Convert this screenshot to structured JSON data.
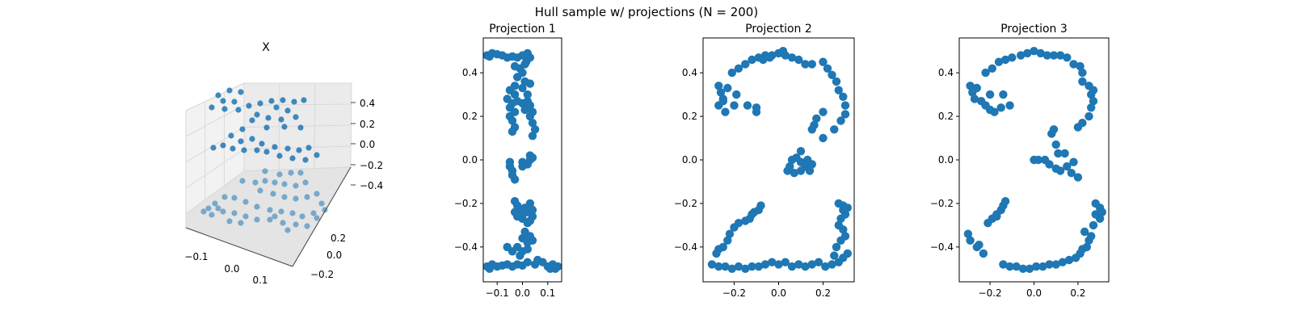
{
  "figure": {
    "suptitle": "Hull sample w/ projections (N = 200)"
  },
  "colors": {
    "marker": "#1f77b4",
    "pane": "#f2f2f2",
    "grid": "#d9d9d9"
  },
  "chart_data": [
    {
      "type": "scatter",
      "subtype": "3d",
      "title": "X",
      "x_ticks": [
        "−0.1",
        "0.0",
        "0.1"
      ],
      "y_ticks": [
        "−0.2",
        "0.0",
        "0.2"
      ],
      "z_ticks": [
        "0.4",
        "0.2",
        "0.0",
        "−0.2",
        "−0.4"
      ],
      "xlim": [
        -0.15,
        0.15
      ],
      "ylim": [
        -0.3,
        0.3
      ],
      "zlim": [
        -0.5,
        0.5
      ],
      "description_points": "digits 1, 2 and 3 stacked as hull sample",
      "grid": true
    },
    {
      "type": "scatter",
      "title": "Projection 1",
      "xlim": [
        -0.155,
        0.155
      ],
      "ylim": [
        -0.56,
        0.56
      ],
      "x_ticks": [
        "−0.1",
        "0.0",
        "0.1"
      ],
      "x_tick_values": [
        -0.1,
        0.0,
        0.1
      ],
      "y_ticks": [
        "0.4",
        "0.2",
        "0.0",
        "−0.2",
        "−0.4"
      ],
      "y_tick_values": [
        0.4,
        0.2,
        0.0,
        -0.2,
        -0.4
      ],
      "grid": false,
      "points": [
        [
          -0.14,
          0.48
        ],
        [
          -0.12,
          0.49
        ],
        [
          -0.1,
          0.485
        ],
        [
          -0.08,
          0.48
        ],
        [
          -0.06,
          0.47
        ],
        [
          -0.04,
          0.475
        ],
        [
          -0.02,
          0.47
        ],
        [
          0.0,
          0.48
        ],
        [
          0.02,
          0.49
        ],
        [
          0.03,
          0.47
        ],
        [
          0.015,
          0.45
        ],
        [
          -0.13,
          0.475
        ],
        [
          -0.03,
          0.43
        ],
        [
          -0.01,
          0.42
        ],
        [
          0.01,
          0.44
        ],
        [
          0.0,
          0.4
        ],
        [
          -0.02,
          0.38
        ],
        [
          0.01,
          0.36
        ],
        [
          0.03,
          0.35
        ],
        [
          -0.03,
          0.34
        ],
        [
          -0.05,
          0.32
        ],
        [
          -0.03,
          0.3
        ],
        [
          0.0,
          0.33
        ],
        [
          0.02,
          0.3
        ],
        [
          -0.06,
          0.28
        ],
        [
          -0.04,
          0.26
        ],
        [
          -0.05,
          0.24
        ],
        [
          -0.03,
          0.22
        ],
        [
          -0.05,
          0.2
        ],
        [
          -0.04,
          0.18
        ],
        [
          -0.03,
          0.15
        ],
        [
          -0.04,
          0.13
        ],
        [
          0.02,
          0.27
        ],
        [
          0.03,
          0.25
        ],
        [
          0.04,
          0.22
        ],
        [
          0.03,
          0.2
        ],
        [
          0.04,
          0.17
        ],
        [
          0.05,
          0.14
        ],
        [
          0.04,
          0.11
        ],
        [
          0.0,
          0.26
        ],
        [
          0.01,
          0.23
        ],
        [
          -0.02,
          0.27
        ],
        [
          -0.05,
          -0.03
        ],
        [
          -0.04,
          -0.05
        ],
        [
          -0.04,
          -0.07
        ],
        [
          -0.03,
          -0.09
        ],
        [
          -0.05,
          -0.01
        ],
        [
          0.03,
          0.0
        ],
        [
          0.03,
          0.02
        ],
        [
          0.02,
          -0.02
        ],
        [
          0.0,
          -0.03
        ],
        [
          0.0,
          -0.01
        ],
        [
          0.01,
          -0.02
        ],
        [
          0.04,
          0.01
        ],
        [
          -0.03,
          -0.19
        ],
        [
          -0.02,
          -0.21
        ],
        [
          -0.01,
          -0.23
        ],
        [
          0.0,
          -0.25
        ],
        [
          0.01,
          -0.22
        ],
        [
          0.02,
          -0.24
        ],
        [
          0.03,
          -0.2
        ],
        [
          0.04,
          -0.23
        ],
        [
          0.04,
          -0.26
        ],
        [
          0.03,
          -0.28
        ],
        [
          -0.02,
          -0.26
        ],
        [
          -0.03,
          -0.24
        ],
        [
          0.0,
          -0.27
        ],
        [
          0.02,
          -0.29
        ],
        [
          0.01,
          -0.33
        ],
        [
          0.03,
          -0.35
        ],
        [
          0.04,
          -0.37
        ],
        [
          0.02,
          -0.38
        ],
        [
          0.0,
          -0.36
        ],
        [
          -0.06,
          -0.4
        ],
        [
          -0.04,
          -0.42
        ],
        [
          -0.02,
          -0.4
        ],
        [
          0.0,
          -0.42
        ],
        [
          0.02,
          -0.41
        ],
        [
          -0.01,
          -0.44
        ],
        [
          -0.14,
          -0.49
        ],
        [
          -0.12,
          -0.48
        ],
        [
          -0.1,
          -0.49
        ],
        [
          -0.08,
          -0.485
        ],
        [
          -0.06,
          -0.48
        ],
        [
          -0.04,
          -0.49
        ],
        [
          -0.02,
          -0.48
        ],
        [
          0.0,
          -0.485
        ],
        [
          0.02,
          -0.47
        ],
        [
          0.05,
          -0.48
        ],
        [
          0.08,
          -0.47
        ],
        [
          0.1,
          -0.49
        ],
        [
          0.12,
          -0.48
        ],
        [
          0.14,
          -0.49
        ],
        [
          0.13,
          -0.5
        ],
        [
          0.11,
          -0.5
        ],
        [
          -0.13,
          -0.5
        ],
        [
          0.06,
          -0.46
        ]
      ]
    },
    {
      "type": "scatter",
      "title": "Projection 2",
      "xlim": [
        -0.34,
        0.34
      ],
      "ylim": [
        -0.56,
        0.56
      ],
      "x_ticks": [
        "−0.2",
        "0.0",
        "0.2"
      ],
      "x_tick_values": [
        -0.2,
        0.0,
        0.2
      ],
      "y_ticks": [
        "0.4",
        "0.2",
        "0.0",
        "−0.2",
        "−0.4"
      ],
      "y_tick_values": [
        0.4,
        0.2,
        0.0,
        -0.2,
        -0.4
      ],
      "grid": false,
      "points": [
        [
          -0.27,
          0.34
        ],
        [
          -0.26,
          0.31
        ],
        [
          -0.25,
          0.28
        ],
        [
          -0.27,
          0.25
        ],
        [
          -0.24,
          0.22
        ],
        [
          -0.25,
          0.27
        ],
        [
          -0.2,
          0.25
        ],
        [
          -0.14,
          0.25
        ],
        [
          -0.1,
          0.24
        ],
        [
          -0.1,
          0.22
        ],
        [
          -0.19,
          0.3
        ],
        [
          -0.23,
          0.33
        ],
        [
          -0.21,
          0.4
        ],
        [
          -0.18,
          0.42
        ],
        [
          -0.15,
          0.44
        ],
        [
          -0.12,
          0.46
        ],
        [
          -0.09,
          0.47
        ],
        [
          -0.06,
          0.48
        ],
        [
          -0.03,
          0.48
        ],
        [
          0.0,
          0.49
        ],
        [
          0.03,
          0.48
        ],
        [
          0.06,
          0.47
        ],
        [
          0.09,
          0.46
        ],
        [
          -0.07,
          0.46
        ],
        [
          -0.04,
          0.47
        ],
        [
          0.02,
          0.5
        ],
        [
          0.12,
          0.44
        ],
        [
          0.15,
          0.44
        ],
        [
          0.2,
          0.45
        ],
        [
          0.22,
          0.42
        ],
        [
          0.24,
          0.39
        ],
        [
          0.26,
          0.36
        ],
        [
          0.27,
          0.32
        ],
        [
          0.29,
          0.29
        ],
        [
          0.3,
          0.25
        ],
        [
          0.3,
          0.21
        ],
        [
          0.28,
          0.18
        ],
        [
          0.25,
          0.14
        ],
        [
          0.2,
          0.1
        ],
        [
          0.16,
          0.16
        ],
        [
          0.15,
          0.14
        ],
        [
          0.17,
          0.19
        ],
        [
          0.2,
          0.22
        ],
        [
          0.1,
          0.04
        ],
        [
          0.08,
          0.01
        ],
        [
          0.1,
          -0.01
        ],
        [
          0.12,
          -0.03
        ],
        [
          0.14,
          -0.05
        ],
        [
          0.1,
          -0.05
        ],
        [
          0.07,
          -0.06
        ],
        [
          0.05,
          -0.03
        ],
        [
          0.04,
          -0.05
        ],
        [
          0.06,
          0.0
        ],
        [
          0.13,
          0.0
        ],
        [
          0.15,
          -0.02
        ],
        [
          -0.08,
          -0.21
        ],
        [
          -0.09,
          -0.23
        ],
        [
          -0.11,
          -0.24
        ],
        [
          -0.12,
          -0.25
        ],
        [
          -0.13,
          -0.27
        ],
        [
          -0.15,
          -0.28
        ],
        [
          -0.18,
          -0.29
        ],
        [
          -0.2,
          -0.31
        ],
        [
          -0.22,
          -0.34
        ],
        [
          -0.23,
          -0.37
        ],
        [
          -0.25,
          -0.4
        ],
        [
          -0.27,
          -0.41
        ],
        [
          -0.28,
          -0.43
        ],
        [
          -0.3,
          -0.48
        ],
        [
          -0.27,
          -0.49
        ],
        [
          -0.24,
          -0.49
        ],
        [
          -0.21,
          -0.5
        ],
        [
          -0.18,
          -0.49
        ],
        [
          -0.15,
          -0.5
        ],
        [
          -0.12,
          -0.49
        ],
        [
          -0.09,
          -0.49
        ],
        [
          -0.06,
          -0.48
        ],
        [
          -0.03,
          -0.47
        ],
        [
          0.0,
          -0.48
        ],
        [
          0.03,
          -0.47
        ],
        [
          0.06,
          -0.49
        ],
        [
          0.09,
          -0.48
        ],
        [
          0.12,
          -0.49
        ],
        [
          0.15,
          -0.48
        ],
        [
          0.18,
          -0.47
        ],
        [
          0.21,
          -0.49
        ],
        [
          0.24,
          -0.48
        ],
        [
          0.27,
          -0.47
        ],
        [
          0.29,
          -0.45
        ],
        [
          0.31,
          -0.43
        ],
        [
          0.25,
          -0.44
        ],
        [
          0.27,
          -0.2
        ],
        [
          0.29,
          -0.21
        ],
        [
          0.31,
          -0.22
        ],
        [
          0.3,
          -0.25
        ],
        [
          0.28,
          -0.27
        ],
        [
          0.27,
          -0.3
        ],
        [
          0.29,
          -0.32
        ],
        [
          0.3,
          -0.35
        ],
        [
          0.28,
          -0.37
        ],
        [
          0.26,
          -0.4
        ],
        [
          0.29,
          -0.23
        ]
      ]
    },
    {
      "type": "scatter",
      "title": "Projection 3",
      "xlim": [
        -0.34,
        0.34
      ],
      "ylim": [
        -0.56,
        0.56
      ],
      "x_ticks": [
        "−0.2",
        "0.0",
        "0.2"
      ],
      "x_tick_values": [
        -0.2,
        0.0,
        0.2
      ],
      "y_ticks": [
        "0.4",
        "0.2",
        "0.0",
        "−0.2",
        "−0.4"
      ],
      "y_tick_values": [
        0.4,
        0.2,
        0.0,
        -0.2,
        -0.4
      ],
      "grid": false,
      "points": [
        [
          -0.29,
          0.34
        ],
        [
          -0.28,
          0.31
        ],
        [
          -0.27,
          0.28
        ],
        [
          -0.24,
          0.27
        ],
        [
          -0.22,
          0.25
        ],
        [
          -0.2,
          0.23
        ],
        [
          -0.18,
          0.22
        ],
        [
          -0.15,
          0.24
        ],
        [
          -0.11,
          0.25
        ],
        [
          -0.14,
          0.3
        ],
        [
          -0.2,
          0.3
        ],
        [
          -0.26,
          0.33
        ],
        [
          -0.22,
          0.4
        ],
        [
          -0.19,
          0.42
        ],
        [
          -0.16,
          0.45
        ],
        [
          -0.13,
          0.46
        ],
        [
          -0.1,
          0.47
        ],
        [
          -0.06,
          0.48
        ],
        [
          -0.03,
          0.49
        ],
        [
          0.0,
          0.5
        ],
        [
          0.03,
          0.49
        ],
        [
          0.06,
          0.48
        ],
        [
          0.09,
          0.48
        ],
        [
          0.12,
          0.48
        ],
        [
          0.15,
          0.47
        ],
        [
          0.18,
          0.44
        ],
        [
          0.21,
          0.43
        ],
        [
          0.22,
          0.4
        ],
        [
          0.22,
          0.36
        ],
        [
          0.25,
          0.34
        ],
        [
          0.26,
          0.3
        ],
        [
          0.27,
          0.27
        ],
        [
          0.26,
          0.24
        ],
        [
          0.25,
          0.2
        ],
        [
          0.22,
          0.17
        ],
        [
          0.2,
          0.15
        ],
        [
          0.27,
          0.32
        ],
        [
          0.09,
          0.14
        ],
        [
          0.08,
          0.12
        ],
        [
          0.1,
          0.07
        ],
        [
          0.0,
          0.0
        ],
        [
          0.02,
          0.0
        ],
        [
          0.05,
          0.0
        ],
        [
          0.07,
          -0.02
        ],
        [
          0.1,
          -0.04
        ],
        [
          0.12,
          -0.05
        ],
        [
          0.15,
          -0.03
        ],
        [
          0.17,
          -0.06
        ],
        [
          0.2,
          -0.08
        ],
        [
          0.18,
          -0.01
        ],
        [
          0.14,
          0.03
        ],
        [
          0.11,
          0.03
        ],
        [
          -0.3,
          -0.34
        ],
        [
          -0.29,
          -0.37
        ],
        [
          -0.26,
          -0.4
        ],
        [
          -0.25,
          -0.39
        ],
        [
          -0.23,
          -0.43
        ],
        [
          -0.21,
          -0.29
        ],
        [
          -0.19,
          -0.27
        ],
        [
          -0.17,
          -0.25
        ],
        [
          -0.15,
          -0.23
        ],
        [
          -0.14,
          -0.21
        ],
        [
          -0.13,
          -0.19
        ],
        [
          -0.17,
          -0.26
        ],
        [
          -0.14,
          -0.48
        ],
        [
          -0.11,
          -0.49
        ],
        [
          -0.08,
          -0.49
        ],
        [
          -0.05,
          -0.5
        ],
        [
          -0.02,
          -0.5
        ],
        [
          0.01,
          -0.49
        ],
        [
          0.04,
          -0.49
        ],
        [
          0.07,
          -0.48
        ],
        [
          0.1,
          -0.48
        ],
        [
          0.13,
          -0.47
        ],
        [
          0.16,
          -0.46
        ],
        [
          0.19,
          -0.45
        ],
        [
          0.21,
          -0.43
        ],
        [
          0.22,
          -0.41
        ],
        [
          0.24,
          -0.4
        ],
        [
          0.25,
          -0.37
        ],
        [
          0.26,
          -0.35
        ],
        [
          0.23,
          -0.33
        ],
        [
          0.28,
          -0.2
        ],
        [
          0.3,
          -0.22
        ],
        [
          0.31,
          -0.24
        ],
        [
          0.3,
          -0.27
        ],
        [
          0.28,
          -0.25
        ],
        [
          0.27,
          -0.3
        ]
      ]
    }
  ]
}
